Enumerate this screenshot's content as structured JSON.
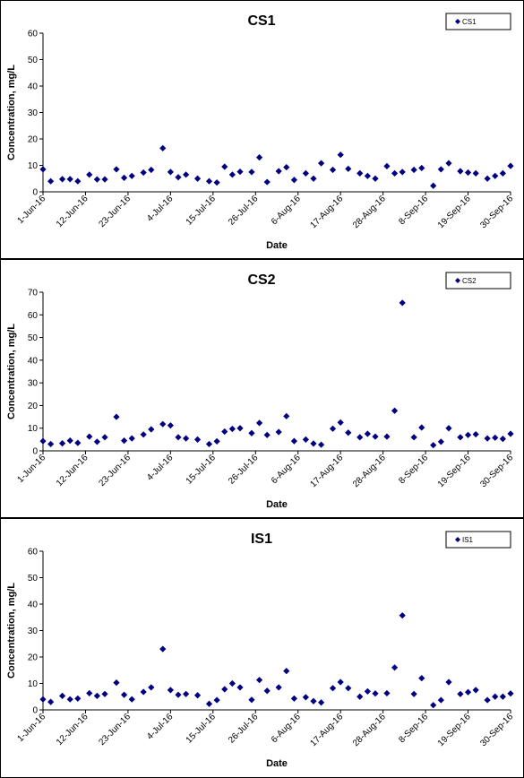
{
  "chart_data": [
    {
      "type": "scatter",
      "title": "CS1",
      "x_label": "Date",
      "y_label": "Concentration, mg/L",
      "x": [
        "2016-06-01",
        "2016-06-03",
        "2016-06-06",
        "2016-06-08",
        "2016-06-10",
        "2016-06-13",
        "2016-06-15",
        "2016-06-17",
        "2016-06-20",
        "2016-06-22",
        "2016-06-24",
        "2016-06-27",
        "2016-06-29",
        "2016-07-02",
        "2016-07-04",
        "2016-07-06",
        "2016-07-08",
        "2016-07-11",
        "2016-07-14",
        "2016-07-16",
        "2016-07-18",
        "2016-07-20",
        "2016-07-22",
        "2016-07-25",
        "2016-07-27",
        "2016-07-29",
        "2016-08-01",
        "2016-08-03",
        "2016-08-05",
        "2016-08-08",
        "2016-08-10",
        "2016-08-12",
        "2016-08-15",
        "2016-08-17",
        "2016-08-19",
        "2016-08-22",
        "2016-08-24",
        "2016-08-26",
        "2016-08-29",
        "2016-08-31",
        "2016-09-02",
        "2016-09-05",
        "2016-09-07",
        "2016-09-10",
        "2016-09-12",
        "2016-09-14",
        "2016-09-17",
        "2016-09-19",
        "2016-09-21",
        "2016-09-24",
        "2016-09-26",
        "2016-09-28",
        "2016-09-30"
      ],
      "series": [
        {
          "name": "CS1",
          "color": "#000080",
          "values": [
            8.5,
            4,
            4.8,
            4.8,
            4,
            6.5,
            4.7,
            4.7,
            8.5,
            5.3,
            6,
            7.3,
            8.3,
            16.5,
            7.5,
            5.5,
            6.5,
            5,
            4,
            3.5,
            9.5,
            6.5,
            7.6,
            7.5,
            13,
            3.7,
            7.8,
            9.3,
            4.5,
            7,
            5,
            10.8,
            8.3,
            14,
            8.7,
            7,
            6,
            5,
            9.7,
            7,
            7.5,
            8.3,
            9,
            2.3,
            8.5,
            10.8,
            7.8,
            7.3,
            7,
            5,
            6,
            7,
            9.8
          ]
        }
      ],
      "xlim": [
        "2016-06-01",
        "2016-09-30"
      ],
      "xticks": [
        {
          "value": "2016-06-01",
          "label": "1-Jun-16"
        },
        {
          "value": "2016-06-12",
          "label": "12-Jun-16"
        },
        {
          "value": "2016-06-23",
          "label": "23-Jun-16"
        },
        {
          "value": "2016-07-04",
          "label": "4-Jul-16"
        },
        {
          "value": "2016-07-15",
          "label": "15-Jul-16"
        },
        {
          "value": "2016-07-26",
          "label": "26-Jul-16"
        },
        {
          "value": "2016-08-06",
          "label": "6-Aug-16"
        },
        {
          "value": "2016-08-17",
          "label": "17-Aug-16"
        },
        {
          "value": "2016-08-28",
          "label": "28-Aug-16"
        },
        {
          "value": "2016-09-08",
          "label": "8-Sep-16"
        },
        {
          "value": "2016-09-19",
          "label": "19-Sep-16"
        },
        {
          "value": "2016-09-30",
          "label": "30-Sep-16"
        }
      ],
      "ylim": [
        0,
        60
      ],
      "yticks": [
        0,
        10,
        20,
        30,
        40,
        50,
        60
      ],
      "legend": "upper right"
    },
    {
      "type": "scatter",
      "title": "CS2",
      "x_label": "Date",
      "y_label": "Concentration, mg/L",
      "x": [
        "2016-06-01",
        "2016-06-03",
        "2016-06-06",
        "2016-06-08",
        "2016-06-10",
        "2016-06-13",
        "2016-06-15",
        "2016-06-17",
        "2016-06-20",
        "2016-06-22",
        "2016-06-24",
        "2016-06-27",
        "2016-06-29",
        "2016-07-02",
        "2016-07-04",
        "2016-07-06",
        "2016-07-08",
        "2016-07-11",
        "2016-07-14",
        "2016-07-16",
        "2016-07-18",
        "2016-07-20",
        "2016-07-22",
        "2016-07-25",
        "2016-07-27",
        "2016-07-29",
        "2016-08-01",
        "2016-08-03",
        "2016-08-05",
        "2016-08-08",
        "2016-08-10",
        "2016-08-12",
        "2016-08-15",
        "2016-08-17",
        "2016-08-19",
        "2016-08-22",
        "2016-08-24",
        "2016-08-26",
        "2016-08-29",
        "2016-08-31",
        "2016-09-02",
        "2016-09-05",
        "2016-09-07",
        "2016-09-10",
        "2016-09-12",
        "2016-09-14",
        "2016-09-17",
        "2016-09-19",
        "2016-09-21",
        "2016-09-24",
        "2016-09-26",
        "2016-09-28",
        "2016-09-30"
      ],
      "series": [
        {
          "name": "CS2",
          "color": "#000080",
          "values": [
            4.3,
            3,
            3.3,
            4.5,
            3.5,
            6.3,
            4,
            6,
            15,
            4.5,
            5.5,
            7.2,
            9.5,
            11.8,
            11.2,
            6,
            5.5,
            5,
            3,
            4.2,
            8.5,
            9.7,
            10,
            7.8,
            12.3,
            7,
            8.3,
            15.3,
            4.3,
            5,
            3.2,
            2.7,
            9.8,
            12.5,
            8,
            6,
            7.5,
            6.3,
            6.3,
            17.7,
            65.3,
            6,
            10.3,
            2.5,
            4,
            10,
            6,
            7,
            7.3,
            5.5,
            5.8,
            5.3,
            7.5
          ]
        }
      ],
      "xlim": [
        "2016-06-01",
        "2016-09-30"
      ],
      "xticks": [
        {
          "value": "2016-06-01",
          "label": "1-Jun-16"
        },
        {
          "value": "2016-06-12",
          "label": "12-Jun-16"
        },
        {
          "value": "2016-06-23",
          "label": "23-Jun-16"
        },
        {
          "value": "2016-07-04",
          "label": "4-Jul-16"
        },
        {
          "value": "2016-07-15",
          "label": "15-Jul-16"
        },
        {
          "value": "2016-07-26",
          "label": "26-Jul-16"
        },
        {
          "value": "2016-08-06",
          "label": "6-Aug-16"
        },
        {
          "value": "2016-08-17",
          "label": "17-Aug-16"
        },
        {
          "value": "2016-08-28",
          "label": "28-Aug-16"
        },
        {
          "value": "2016-09-08",
          "label": "8-Sep-16"
        },
        {
          "value": "2016-09-19",
          "label": "19-Sep-16"
        },
        {
          "value": "2016-09-30",
          "label": "30-Sep-16"
        }
      ],
      "ylim": [
        0,
        70
      ],
      "yticks": [
        0,
        10,
        20,
        30,
        40,
        50,
        60,
        70
      ],
      "legend": "upper right"
    },
    {
      "type": "scatter",
      "title": "IS1",
      "x_label": "Date",
      "y_label": "Concentration, mg/L",
      "x": [
        "2016-06-01",
        "2016-06-03",
        "2016-06-06",
        "2016-06-08",
        "2016-06-10",
        "2016-06-13",
        "2016-06-15",
        "2016-06-17",
        "2016-06-20",
        "2016-06-22",
        "2016-06-24",
        "2016-06-27",
        "2016-06-29",
        "2016-07-02",
        "2016-07-04",
        "2016-07-06",
        "2016-07-08",
        "2016-07-11",
        "2016-07-14",
        "2016-07-16",
        "2016-07-18",
        "2016-07-20",
        "2016-07-22",
        "2016-07-25",
        "2016-07-27",
        "2016-07-29",
        "2016-08-01",
        "2016-08-03",
        "2016-08-05",
        "2016-08-08",
        "2016-08-10",
        "2016-08-12",
        "2016-08-15",
        "2016-08-17",
        "2016-08-19",
        "2016-08-22",
        "2016-08-24",
        "2016-08-26",
        "2016-08-29",
        "2016-08-31",
        "2016-09-02",
        "2016-09-05",
        "2016-09-07",
        "2016-09-10",
        "2016-09-12",
        "2016-09-14",
        "2016-09-17",
        "2016-09-19",
        "2016-09-21",
        "2016-09-24",
        "2016-09-26",
        "2016-09-28",
        "2016-09-30"
      ],
      "series": [
        {
          "name": "IS1",
          "color": "#000080",
          "values": [
            4,
            3,
            5.3,
            4,
            4.3,
            6.3,
            5.3,
            6,
            10.3,
            5.7,
            4,
            6.8,
            8.5,
            23,
            7.5,
            5.7,
            6,
            5.5,
            2.3,
            3.7,
            7.8,
            10,
            8.5,
            3.8,
            11.3,
            7.2,
            8.5,
            14.7,
            4.3,
            4.8,
            3.3,
            2.8,
            8.2,
            10.5,
            8.2,
            5,
            7,
            6.2,
            6.3,
            16,
            35.7,
            6,
            12,
            1.8,
            3.7,
            10.5,
            6,
            6.7,
            7.5,
            3.7,
            5,
            5,
            6.2
          ]
        }
      ],
      "xlim": [
        "2016-06-01",
        "2016-09-30"
      ],
      "xticks": [
        {
          "value": "2016-06-01",
          "label": "1-Jun-16"
        },
        {
          "value": "2016-06-12",
          "label": "12-Jun-16"
        },
        {
          "value": "2016-06-23",
          "label": "23-Jun-16"
        },
        {
          "value": "2016-07-04",
          "label": "4-Jul-16"
        },
        {
          "value": "2016-07-15",
          "label": "15-Jul-16"
        },
        {
          "value": "2016-07-26",
          "label": "26-Jul-16"
        },
        {
          "value": "2016-08-06",
          "label": "6-Aug-16"
        },
        {
          "value": "2016-08-17",
          "label": "17-Aug-16"
        },
        {
          "value": "2016-08-28",
          "label": "28-Aug-16"
        },
        {
          "value": "2016-09-08",
          "label": "8-Sep-16"
        },
        {
          "value": "2016-09-19",
          "label": "19-Sep-16"
        },
        {
          "value": "2016-09-30",
          "label": "30-Sep-16"
        }
      ],
      "ylim": [
        0,
        60
      ],
      "yticks": [
        0,
        10,
        20,
        30,
        40,
        50,
        60
      ],
      "legend": "upper right"
    }
  ]
}
